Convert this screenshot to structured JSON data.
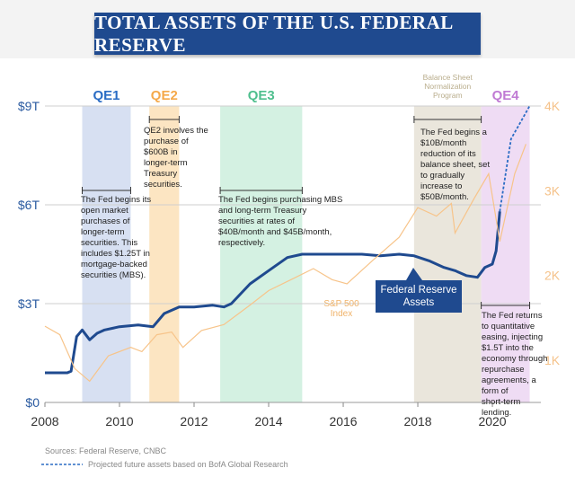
{
  "title": "TOTAL ASSETS OF THE U.S. FEDERAL RESERVE",
  "footer": {
    "sources": "Sources: Federal Reserve, CNBC",
    "projection_note": "Projected future assets based on BofA Global Research"
  },
  "colors": {
    "fed": "#1f4a8f",
    "sp500": "#f7c48a",
    "qe1": "#c9d6ee",
    "qe2": "#fbdcae",
    "qe3": "#c6ecd8",
    "qe4": "#ead0f0",
    "normalization": "#e3ded0",
    "banner": "#1f4a8f"
  },
  "bands": [
    {
      "label": "QE1",
      "start": 2009.0,
      "end": 2010.3,
      "color": "#2a6cc4"
    },
    {
      "label": "QE2",
      "start": 2010.8,
      "end": 2011.6,
      "color": "#f5a94a"
    },
    {
      "label": "QE3",
      "start": 2012.7,
      "end": 2014.9,
      "color": "#4fbf8e"
    },
    {
      "label": "Balance Sheet Normalization Program",
      "start": 2017.9,
      "end": 2019.7,
      "color": "#b9ad8c"
    },
    {
      "label": "QE4",
      "start": 2019.7,
      "end": 2021.0,
      "color": "#c07ad4"
    }
  ],
  "annotations": {
    "qe1": "The Fed begins its open market purchases of longer-term securities. This includes $1.25T in mortgage-backed securities (MBS).",
    "qe2": "QE2 involves the purchase of $600B in longer-term Treasury securities.",
    "qe3": "The Fed begins purchasing MBS and long-term Treasury securities at rates of $40B/month and $45B/month, respectively.",
    "normalization": "The Fed begins a $10B/month reduction of its balance sheet, set to gradually increase to $50B/month.",
    "qe4": "The Fed returns to quantitative easing, injecting $1.5T into the economy through repurchase agreements, a form of short-term lending."
  },
  "labels": {
    "fed_box": "Federal Reserve Assets",
    "sp500": "S&P 500 Index"
  },
  "chart_data": {
    "type": "line",
    "title": "TOTAL ASSETS OF THE U.S. FEDERAL RESERVE",
    "xlim": [
      2008,
      2021.3
    ],
    "x_ticks": [
      "2008",
      "2010",
      "2012",
      "2014",
      "2016",
      "2018",
      "2020"
    ],
    "y_left": {
      "unit": "USD trillions",
      "ylim": [
        0,
        9
      ],
      "ticks": [
        "$0",
        "$3T",
        "$6T",
        "$9T"
      ]
    },
    "y_right": {
      "unit": "S&P 500 index",
      "ylim": [
        500,
        4000
      ],
      "ticks": [
        "1K",
        "2K",
        "3K",
        "4K"
      ]
    },
    "grid": true,
    "series": [
      {
        "name": "Federal Reserve Assets",
        "axis": "left",
        "x": [
          2008.0,
          2008.6,
          2008.7,
          2008.85,
          2009.0,
          2009.2,
          2009.4,
          2009.6,
          2010.0,
          2010.5,
          2010.9,
          2011.2,
          2011.6,
          2012.0,
          2012.5,
          2012.8,
          2013.0,
          2013.5,
          2014.0,
          2014.5,
          2014.9,
          2015.5,
          2016.0,
          2016.5,
          2017.0,
          2017.5,
          2017.9,
          2018.3,
          2018.7,
          2019.0,
          2019.3,
          2019.6,
          2019.8,
          2020.0,
          2020.1,
          2020.2
        ],
        "y": [
          0.9,
          0.9,
          0.95,
          2.0,
          2.2,
          1.9,
          2.1,
          2.2,
          2.3,
          2.35,
          2.3,
          2.7,
          2.9,
          2.9,
          2.95,
          2.9,
          3.0,
          3.6,
          4.0,
          4.4,
          4.5,
          4.5,
          4.5,
          4.5,
          4.45,
          4.5,
          4.45,
          4.3,
          4.1,
          4.0,
          3.85,
          3.8,
          4.1,
          4.2,
          4.6,
          5.8
        ]
      },
      {
        "name": "Projected future assets",
        "axis": "left",
        "projected": true,
        "x": [
          2020.2,
          2020.5,
          2020.75,
          2021.0
        ],
        "y": [
          5.8,
          8.0,
          8.5,
          9.0
        ]
      },
      {
        "name": "S&P 500 Index",
        "axis": "right",
        "x": [
          2008.0,
          2008.4,
          2008.8,
          2009.2,
          2009.7,
          2010.3,
          2010.6,
          2011.0,
          2011.4,
          2011.7,
          2012.2,
          2012.8,
          2013.5,
          2014.0,
          2014.6,
          2015.2,
          2015.7,
          2016.1,
          2016.8,
          2017.5,
          2018.0,
          2018.5,
          2018.9,
          2019.0,
          2019.5,
          2019.9,
          2020.2,
          2020.6,
          2020.9
        ],
        "y": [
          1400,
          1300,
          900,
          750,
          1050,
          1150,
          1100,
          1300,
          1330,
          1150,
          1350,
          1420,
          1650,
          1820,
          1950,
          2080,
          1950,
          1900,
          2180,
          2450,
          2800,
          2700,
          2850,
          2500,
          2900,
          3200,
          2400,
          3200,
          3550
        ]
      }
    ]
  }
}
